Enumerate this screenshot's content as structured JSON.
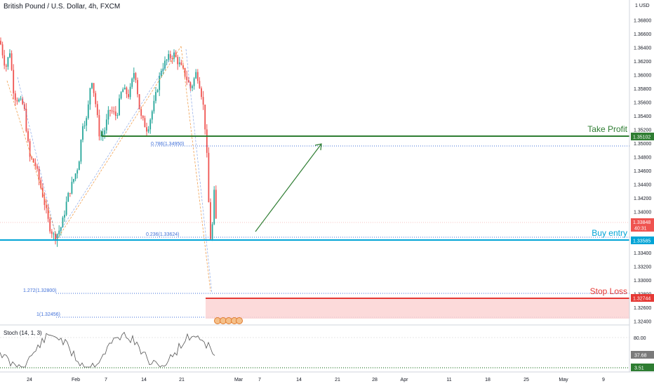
{
  "header": {
    "title": "British Pound / U.S. Dollar, 4h, FXCM",
    "currency": "1 USD"
  },
  "indicator": {
    "label": "Stoch (14, 1, 3)"
  },
  "annotations": {
    "take_profit": "Take Profit",
    "buy_entry": "Buy entry",
    "stop_loss": "Stop Loss"
  },
  "colors": {
    "green": "#2e7d32",
    "blue": "#00a4d6",
    "red": "#e53935",
    "up_candle": "#26a69a",
    "down_candle": "#ef5350",
    "fib_blue": "#3f6fd8",
    "fib_orange": "#f0a050"
  },
  "chart_data": {
    "type": "candlestick",
    "symbol": "GBPUSD",
    "timeframe": "4h",
    "y_axis_ticks": [
      "1.36800",
      "1.36600",
      "1.36400",
      "1.36200",
      "1.36000",
      "1.35800",
      "1.35600",
      "1.35400",
      "1.35200",
      "1.35000",
      "1.34800",
      "1.34600",
      "1.34400",
      "1.34200",
      "1.34000",
      "1.33800",
      "1.33600",
      "1.33400",
      "1.33200",
      "1.33000",
      "1.32800",
      "1.32600",
      "1.32400"
    ],
    "x_axis_ticks": [
      "24",
      "Feb",
      "7",
      "14",
      "21",
      "Mar",
      "7",
      "14",
      "21",
      "28",
      "Apr",
      "11",
      "18",
      "25",
      "May",
      "9"
    ],
    "levels": [
      {
        "name": "Take Profit",
        "price": 1.35102,
        "label": "1.35102"
      },
      {
        "name": "Buy entry",
        "price": 1.33585,
        "label": "1.33585"
      },
      {
        "name": "Stop Loss",
        "price": 1.32744,
        "label": "1.32744"
      }
    ],
    "current_price": {
      "label": "1.33848",
      "countdown": "40:31"
    },
    "fib_levels": [
      {
        "label": "0.786(1.34950)",
        "price": 1.3495
      },
      {
        "label": "0.236(1.33624)",
        "price": 1.33624
      },
      {
        "label": "1.272(1.32800)",
        "price": 1.328
      },
      {
        "label": "1(1.32456)",
        "price": 1.32456
      }
    ],
    "stoch": {
      "params": "14, 1, 3",
      "ticks": [
        "80.00"
      ],
      "value_label": "37.68",
      "low_label": "3.51"
    }
  }
}
